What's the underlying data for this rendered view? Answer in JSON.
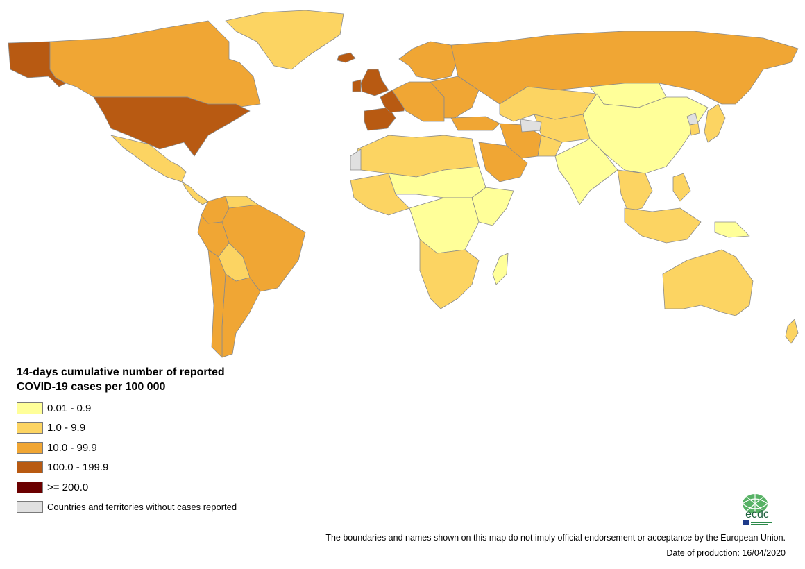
{
  "legend": {
    "title": "14-days cumulative number of reported COVID-19 cases per 100 000",
    "classes": [
      {
        "label": "0.01 - 0.9",
        "color": "#ffff99"
      },
      {
        "label": "1.0 - 9.9",
        "color": "#fcd462"
      },
      {
        "label": "10.0 - 99.9",
        "color": "#f0a634"
      },
      {
        "label": "100.0 - 199.9",
        "color": "#b85a12"
      },
      {
        "label": ">= 200.0",
        "color": "#6b0000"
      },
      {
        "label": "Countries and territories without cases reported",
        "color": "#e0e0e0"
      }
    ]
  },
  "logo": {
    "text": "ecdc"
  },
  "footer": {
    "disclaimer": "The boundaries and names shown on this map do not imply official endorsement or acceptance by the European Union.",
    "date_label": "Date of production: 16/04/2020"
  },
  "regions": [
    {
      "name": "alaska",
      "class": 3
    },
    {
      "name": "canada",
      "class": 2
    },
    {
      "name": "greenland",
      "class": 1
    },
    {
      "name": "iceland",
      "class": 3
    },
    {
      "name": "usa",
      "class": 3
    },
    {
      "name": "mexico",
      "class": 1
    },
    {
      "name": "central-america",
      "class": 1
    },
    {
      "name": "colombia",
      "class": 2
    },
    {
      "name": "venezuela",
      "class": 1
    },
    {
      "name": "brazil",
      "class": 2
    },
    {
      "name": "peru",
      "class": 2
    },
    {
      "name": "bolivia",
      "class": 1
    },
    {
      "name": "argentina",
      "class": 2
    },
    {
      "name": "chile",
      "class": 2
    },
    {
      "name": "uk",
      "class": 3
    },
    {
      "name": "ireland",
      "class": 3
    },
    {
      "name": "iberia",
      "class": 3
    },
    {
      "name": "france",
      "class": 3
    },
    {
      "name": "western-europe",
      "class": 2
    },
    {
      "name": "scandinavia",
      "class": 2
    },
    {
      "name": "eastern-europe",
      "class": 2
    },
    {
      "name": "russia",
      "class": 2
    },
    {
      "name": "kazakhstan",
      "class": 1
    },
    {
      "name": "turkey",
      "class": 2
    },
    {
      "name": "iran",
      "class": 2
    },
    {
      "name": "saudi-arabia",
      "class": 2
    },
    {
      "name": "north-africa",
      "class": 1
    },
    {
      "name": "sahel",
      "class": 0
    },
    {
      "name": "west-africa",
      "class": 1
    },
    {
      "name": "central-africa",
      "class": 0
    },
    {
      "name": "east-africa",
      "class": 0
    },
    {
      "name": "southern-africa",
      "class": 1
    },
    {
      "name": "madagascar",
      "class": 0
    },
    {
      "name": "western-sahara",
      "class": 5
    },
    {
      "name": "china",
      "class": 0
    },
    {
      "name": "mongolia",
      "class": 0
    },
    {
      "name": "india",
      "class": 0
    },
    {
      "name": "central-asia",
      "class": 1
    },
    {
      "name": "afghanistan",
      "class": 1
    },
    {
      "name": "turkmenistan",
      "class": 5
    },
    {
      "name": "southeast-asia",
      "class": 1
    },
    {
      "name": "japan",
      "class": 1
    },
    {
      "name": "korea",
      "class": 1
    },
    {
      "name": "north-korea",
      "class": 5
    },
    {
      "name": "philippines",
      "class": 1
    },
    {
      "name": "indonesia",
      "class": 1
    },
    {
      "name": "papua-new-guinea",
      "class": 0
    },
    {
      "name": "australia",
      "class": 1
    },
    {
      "name": "new-zealand",
      "class": 1
    }
  ]
}
